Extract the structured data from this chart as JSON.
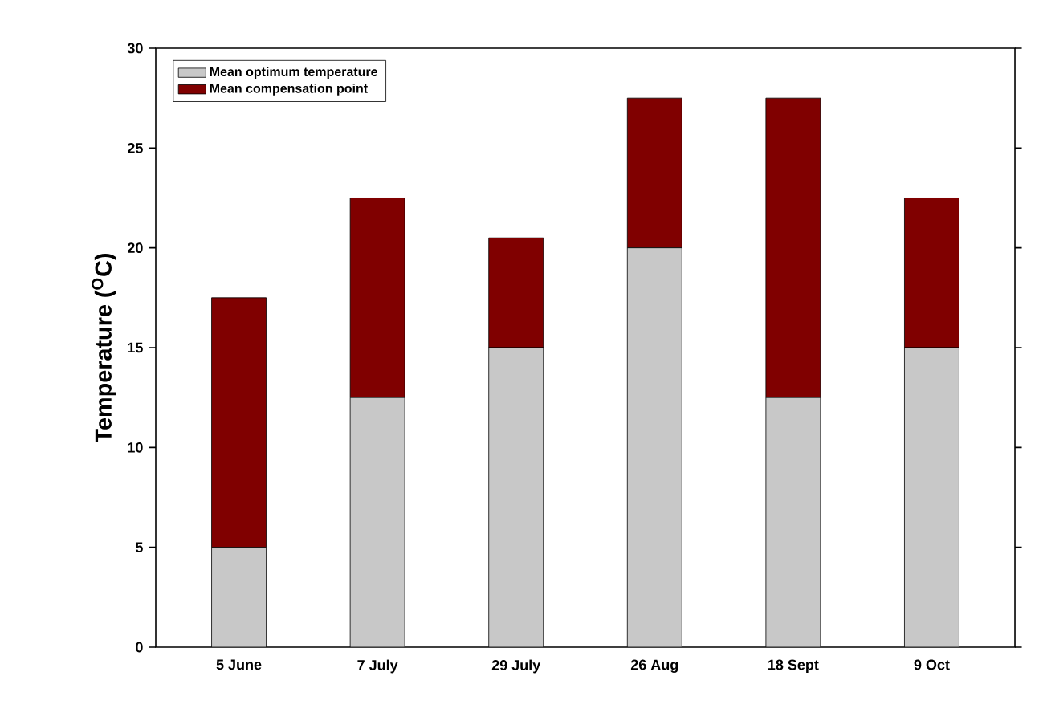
{
  "chart_data": {
    "type": "bar",
    "stacked": true,
    "ylabel": "Temperature ($^{O}$C)",
    "categories": [
      "5 June",
      "7 July",
      "29 July",
      "26 Aug",
      "18 Sept",
      "9 Oct"
    ],
    "series": [
      {
        "name": "Mean optimum temperature",
        "color": "#c8c8c8",
        "values": [
          5,
          12.5,
          15,
          20,
          12.5,
          15
        ]
      },
      {
        "name": "Mean compensation point",
        "color": "#800000",
        "values": [
          12.5,
          10,
          5.5,
          7.5,
          15,
          7.5
        ]
      }
    ],
    "ylim": [
      0,
      30
    ],
    "yticks": [
      0,
      5,
      10,
      15,
      20,
      25,
      30
    ],
    "legend": "top left",
    "grid": false
  }
}
